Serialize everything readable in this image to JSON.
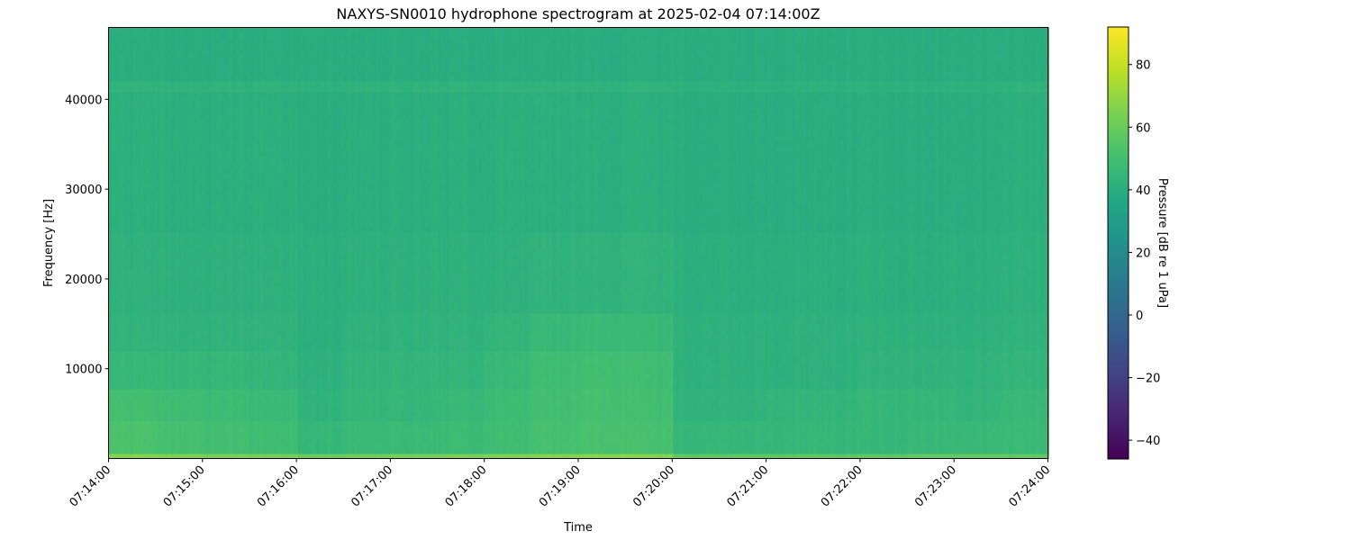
{
  "chart_data": {
    "type": "heatmap",
    "title": "NAXYS-SN0010 hydrophone spectrogram at 2025-02-04 07:14:00Z",
    "xlabel": "Time",
    "ylabel": "Frequency [Hz]",
    "colorbar_label": "Pressure [dB re 1 uPa]",
    "colormap": "viridis",
    "xlim": [
      "07:14:00",
      "07:24:00"
    ],
    "ylim": [
      0,
      48000
    ],
    "clim": [
      -46,
      92
    ],
    "x_ticks": [
      "07:14:00",
      "07:15:00",
      "07:16:00",
      "07:17:00",
      "07:18:00",
      "07:19:00",
      "07:20:00",
      "07:21:00",
      "07:22:00",
      "07:23:00",
      "07:24:00"
    ],
    "y_ticks": [
      "10000",
      "20000",
      "30000",
      "40000"
    ],
    "colorbar_ticks": [
      "−40",
      "−20",
      "0",
      "20",
      "40",
      "60",
      "80"
    ],
    "grid": false,
    "time_bins": [
      "07:14:00",
      "07:14:30",
      "07:15:00",
      "07:15:30",
      "07:16:00",
      "07:16:30",
      "07:17:00",
      "07:17:30",
      "07:18:00",
      "07:18:30",
      "07:19:00",
      "07:19:30",
      "07:20:00",
      "07:20:30",
      "07:21:00",
      "07:21:30",
      "07:22:00",
      "07:22:30",
      "07:23:00",
      "07:23:30"
    ],
    "frequency_bands_hz": [
      [
        0,
        500
      ],
      [
        500,
        4000
      ],
      [
        4000,
        8000
      ],
      [
        8000,
        12000
      ],
      [
        12000,
        16000
      ],
      [
        16000,
        25000
      ],
      [
        25000,
        41000
      ],
      [
        41000,
        42000
      ],
      [
        42000,
        48000
      ]
    ],
    "values_db": [
      [
        66,
        65,
        64,
        63,
        60,
        62,
        63,
        64,
        65,
        66,
        67,
        66,
        57,
        57,
        57,
        57,
        57,
        58,
        58,
        58
      ],
      [
        52,
        51,
        50,
        49,
        45,
        47,
        47,
        48,
        49,
        51,
        52,
        51,
        45,
        45,
        45,
        45,
        45,
        46,
        46,
        47
      ],
      [
        50,
        49,
        48,
        47,
        43,
        45,
        45,
        46,
        48,
        50,
        51,
        50,
        43,
        43,
        44,
        44,
        45,
        45,
        44,
        46
      ],
      [
        45,
        45,
        45,
        44,
        42,
        44,
        44,
        44,
        46,
        49,
        50,
        49,
        42,
        42,
        42,
        42,
        43,
        43,
        43,
        44
      ],
      [
        43,
        43,
        43,
        43,
        41,
        43,
        43,
        43,
        44,
        46,
        47,
        46,
        42,
        42,
        42,
        42,
        42,
        42,
        42,
        43
      ],
      [
        42,
        42,
        42,
        42,
        41,
        42,
        42,
        42,
        42,
        43,
        43,
        43,
        41,
        41,
        41,
        41,
        41,
        41,
        41,
        42
      ],
      [
        41,
        41,
        41,
        41,
        40,
        41,
        41,
        41,
        41,
        41,
        41,
        41,
        40,
        40,
        40,
        40,
        40,
        40,
        40,
        41
      ],
      [
        43,
        43,
        43,
        43,
        42,
        43,
        43,
        43,
        43,
        43,
        43,
        43,
        42,
        42,
        42,
        42,
        42,
        42,
        42,
        43
      ],
      [
        40,
        40,
        40,
        40,
        40,
        40,
        40,
        40,
        40,
        40,
        40,
        40,
        40,
        40,
        40,
        40,
        40,
        40,
        40,
        40
      ]
    ]
  }
}
